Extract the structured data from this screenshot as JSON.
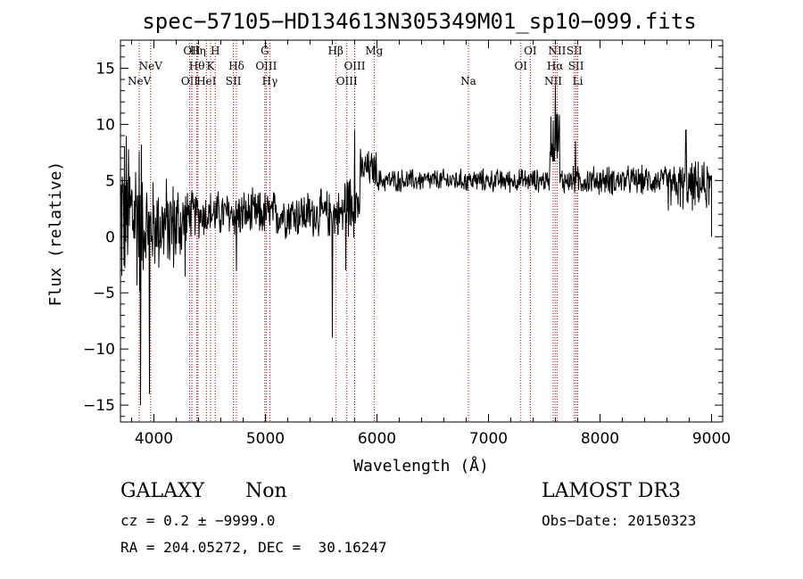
{
  "chart_data": {
    "type": "line",
    "title": "spec−57105−HD134613N305349M01_sp10−099.fits",
    "xlabel": "Wavelength (Å)",
    "ylabel": "Flux (relative)",
    "xlim": [
      3700,
      9100
    ],
    "ylim": [
      -16.5,
      17.5
    ],
    "xticks": [
      4000,
      5000,
      6000,
      7000,
      8000,
      9000
    ],
    "yticks": [
      -15,
      -10,
      -5,
      0,
      5,
      10,
      15
    ],
    "grid": false,
    "line_color": "#cc0000",
    "spectrum_color": "#000000",
    "spectral_lines": [
      {
        "wave": 3869,
        "label": "NeV",
        "tier": 3
      },
      {
        "wave": 3970,
        "label": "NeV",
        "tier": 2
      },
      {
        "wave": 4320,
        "label": "OII",
        "tier": 3
      },
      {
        "wave": 4340,
        "label": "OII",
        "tier": 1
      },
      {
        "wave": 4385,
        "label": "Hθ",
        "tier": 2
      },
      {
        "wave": 4395,
        "label": "Hη",
        "tier": 1
      },
      {
        "wave": 4471,
        "label": "HeI",
        "tier": 3
      },
      {
        "wave": 4508,
        "label": "K",
        "tier": 2
      },
      {
        "wave": 4550,
        "label": "H",
        "tier": 1
      },
      {
        "wave": 4713,
        "label": "SII",
        "tier": 3
      },
      {
        "wave": 4740,
        "label": "Hδ",
        "tier": 2
      },
      {
        "wave": 4995,
        "label": "G",
        "tier": 1
      },
      {
        "wave": 5007,
        "label": "OIII",
        "tier": 2
      },
      {
        "wave": 5040,
        "label": "Hγ",
        "tier": 3
      },
      {
        "wave": 5630,
        "label": "Hβ",
        "tier": 1
      },
      {
        "wave": 5730,
        "label": "OIII",
        "tier": 3
      },
      {
        "wave": 5800,
        "label": "OIII",
        "tier": 2
      },
      {
        "wave": 5975,
        "label": "Mg",
        "tier": 1
      },
      {
        "wave": 6820,
        "label": "Na",
        "tier": 3
      },
      {
        "wave": 7290,
        "label": "OI",
        "tier": 2
      },
      {
        "wave": 7375,
        "label": "OI",
        "tier": 1
      },
      {
        "wave": 7580,
        "label": "NII",
        "tier": 3
      },
      {
        "wave": 7598,
        "label": "Hα",
        "tier": 2
      },
      {
        "wave": 7615,
        "label": "NII",
        "tier": 1
      },
      {
        "wave": 7770,
        "label": "SII",
        "tier": 1
      },
      {
        "wave": 7785,
        "label": "SII",
        "tier": 2
      },
      {
        "wave": 7800,
        "label": "Li",
        "tier": 3
      }
    ],
    "spectrum_segments": [
      {
        "x": [
          3700,
          3900
        ],
        "level": 2.0,
        "noise": 9.0
      },
      {
        "x": [
          3900,
          4300
        ],
        "level": 1.0,
        "noise": 5.0
      },
      {
        "x": [
          4300,
          4800
        ],
        "level": 2.0,
        "noise": 2.5
      },
      {
        "x": [
          4800,
          5700
        ],
        "level": 2.0,
        "noise": 2.5
      },
      {
        "x": [
          5700,
          5850
        ],
        "level": 3.0,
        "noise": 3.5
      },
      {
        "x": [
          5850,
          6000
        ],
        "level": 6.0,
        "noise": 2.0
      },
      {
        "x": [
          6000,
          7550
        ],
        "level": 5.0,
        "noise": 1.2
      },
      {
        "x": [
          7550,
          7640
        ],
        "level": 9.0,
        "noise": 3.0
      },
      {
        "x": [
          7640,
          8600
        ],
        "level": 5.0,
        "noise": 1.5
      },
      {
        "x": [
          8600,
          9000
        ],
        "level": 4.5,
        "noise": 2.5
      }
    ],
    "spectrum_spikes": [
      {
        "x": 3880,
        "y": -15.0
      },
      {
        "x": 3960,
        "y": -14.0
      },
      {
        "x": 4740,
        "y": -3.0
      },
      {
        "x": 5600,
        "y": -9.0
      },
      {
        "x": 5720,
        "y": -3.0
      },
      {
        "x": 5800,
        "y": 9.5
      },
      {
        "x": 7600,
        "y": 13.5
      },
      {
        "x": 7780,
        "y": 8.5
      },
      {
        "x": 8770,
        "y": 9.5
      }
    ]
  },
  "info": {
    "class": "GALAXY",
    "subclass": "Non",
    "survey": "LAMOST DR3",
    "cz": "cz = 0.2 ± −9999.0",
    "obs_date": "Obs−Date: 20150323",
    "coords": "RA = 204.05272, DEC =  30.16247"
  }
}
